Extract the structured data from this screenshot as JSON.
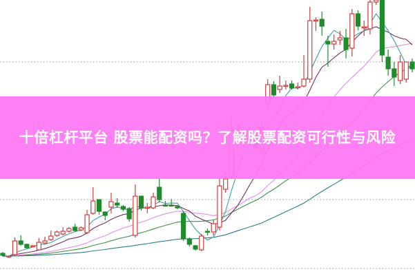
{
  "article": {
    "title": "十倍杠杆平台 股票能配资吗？了解股票配资可行性与风险",
    "banner_color": "#ff78f5"
  },
  "chart_data": {
    "type": "candlestick",
    "title": "",
    "xlabel": "",
    "ylabel": "",
    "ylim": [
      0,
      40
    ],
    "grid": "dotted horizontal",
    "gridlines": [
      1,
      11,
      31
    ],
    "colors": {
      "up": "#d33b3b",
      "down": "#1e8c2a",
      "ma5": "#3f9aa6",
      "ma10": "#6e2f5e",
      "ma20": "#e58be8",
      "ma30": "#3c8f45",
      "ma60": "#2a7d86"
    },
    "moving_averages": [
      5,
      10,
      20,
      30,
      60
    ],
    "candles": [
      [
        3.2,
        3.4,
        2.7,
        2.9
      ],
      [
        2.7,
        2.9,
        2.5,
        2.8
      ],
      [
        3.0,
        5.5,
        2.8,
        5.0
      ],
      [
        5.0,
        5.8,
        4.3,
        4.5
      ],
      [
        4.5,
        4.6,
        3.9,
        4.0
      ],
      [
        4.2,
        4.4,
        4.1,
        4.3
      ],
      [
        3.7,
        5.4,
        3.6,
        4.8
      ],
      [
        4.7,
        5.6,
        4.5,
        5.0
      ],
      [
        5.2,
        6.5,
        5.0,
        5.7
      ],
      [
        5.8,
        6.5,
        5.6,
        6.3
      ],
      [
        6.0,
        7.0,
        5.8,
        6.4
      ],
      [
        6.4,
        7.0,
        6.2,
        6.8
      ],
      [
        7.0,
        7.5,
        6.3,
        6.5
      ],
      [
        6.6,
        7.1,
        6.4,
        6.9
      ],
      [
        6.2,
        9.5,
        6.0,
        8.8
      ],
      [
        9.0,
        12.8,
        8.8,
        10.8
      ],
      [
        11.0,
        11.0,
        8.8,
        9.3
      ],
      [
        9.2,
        9.3,
        8.0,
        8.7
      ],
      [
        9.9,
        12.0,
        9.0,
        10.7
      ],
      [
        10.5,
        11.2,
        9.8,
        10.2
      ],
      [
        10.0,
        10.2,
        9.3,
        9.6
      ],
      [
        9.7,
        9.9,
        7.8,
        8.2
      ],
      [
        5.8,
        13.2,
        5.5,
        11.5
      ],
      [
        11.5,
        11.5,
        9.4,
        9.8
      ],
      [
        9.8,
        10.5,
        9.0,
        9.9
      ],
      [
        9.8,
        12.0,
        9.6,
        11.4
      ],
      [
        12.8,
        14.0,
        10.6,
        11.0
      ],
      [
        10.2,
        10.8,
        10.0,
        10.1
      ],
      [
        10.2,
        11.1,
        10.0,
        10.1
      ],
      [
        10.0,
        10.2,
        9.6,
        9.8
      ],
      [
        9.0,
        9.3,
        5.0,
        5.3
      ],
      [
        5.3,
        5.5,
        4.2,
        4.5
      ],
      [
        4.3,
        4.4,
        3.6,
        3.8
      ],
      [
        3.7,
        6.0,
        3.5,
        5.7
      ],
      [
        6.4,
        6.8,
        5.8,
        6.3
      ],
      [
        6.3,
        8.0,
        5.8,
        7.5
      ],
      [
        7.0,
        14.0,
        6.5,
        13.0
      ],
      [
        12.5,
        15.0,
        12.0,
        14.0
      ],
      [
        14.5,
        23.0,
        14.0,
        21.0
      ],
      [
        21.0,
        22.0,
        18.5,
        20.0
      ],
      [
        19.8,
        21.0,
        18.5,
        19.9
      ],
      [
        19.8,
        21.0,
        18.8,
        19.9
      ],
      [
        20.5,
        21.5,
        18.0,
        18.5
      ],
      [
        18.0,
        22.5,
        17.5,
        21.5
      ],
      [
        25.0,
        28.5,
        24.0,
        27.7
      ],
      [
        27.7,
        28.2,
        25.5,
        26.2
      ],
      [
        27.0,
        29.0,
        26.5,
        27.5
      ],
      [
        27.5,
        28.3,
        27.0,
        27.6
      ],
      [
        27.8,
        28.3,
        27.0,
        27.2
      ],
      [
        27.3,
        28.0,
        27.0,
        27.4
      ],
      [
        27.5,
        32.0,
        27.3,
        28.5
      ],
      [
        28.5,
        39.0,
        28.0,
        37.0
      ],
      [
        37.0,
        37.5,
        35.5,
        37.1
      ],
      [
        37.2,
        38.3,
        34.8,
        36.2
      ],
      [
        34.0,
        34.8,
        30.3,
        33.6
      ],
      [
        33.6,
        35.0,
        32.8,
        34.0
      ],
      [
        34.2,
        35.5,
        33.5,
        34.5
      ],
      [
        34.5,
        35.8,
        31.5,
        32.8
      ],
      [
        33.0,
        38.7,
        31.8,
        38.0
      ],
      [
        38.0,
        38.5,
        35.6,
        36.2
      ],
      [
        36.0,
        37.0,
        34.8,
        36.1
      ],
      [
        35.8,
        40.0,
        35.0,
        39.7
      ],
      [
        39.7,
        40.0,
        39.3,
        40.0
      ],
      [
        40.0,
        40.0,
        31.0,
        32.0
      ],
      [
        31.7,
        32.8,
        29.0,
        30.0
      ],
      [
        30.0,
        31.0,
        27.5,
        28.8
      ],
      [
        28.3,
        32.0,
        27.8,
        31.0
      ],
      [
        28.5,
        31.0,
        28.0,
        31.0
      ],
      [
        31.0,
        31.5,
        29.5,
        30.0
      ]
    ]
  }
}
